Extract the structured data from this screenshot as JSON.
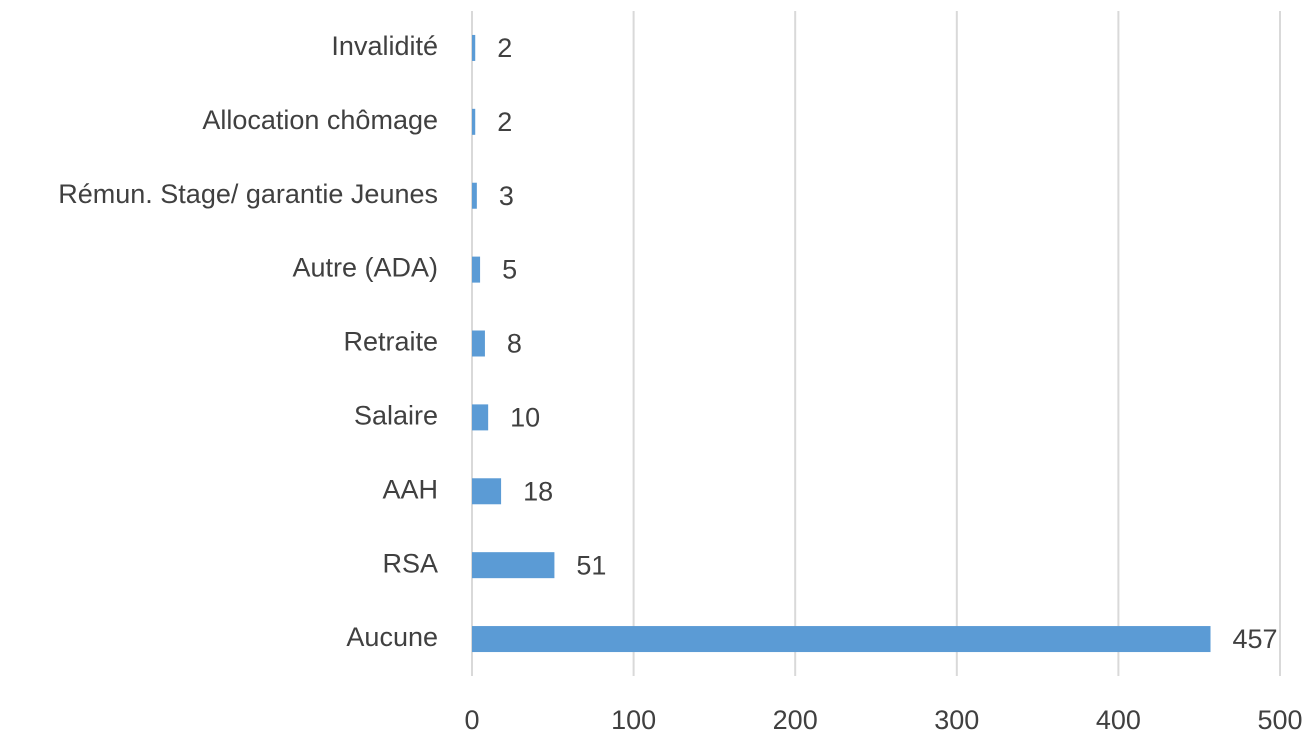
{
  "chart_data": {
    "type": "bar",
    "orientation": "horizontal",
    "categories": [
      "Invalidité",
      "Allocation chômage",
      "Rémun. Stage/ garantie Jeunes",
      "Autre (ADA)",
      "Retraite",
      "Salaire",
      "AAH",
      "RSA",
      "Aucune"
    ],
    "values": [
      2,
      2,
      3,
      5,
      8,
      10,
      18,
      51,
      457
    ],
    "color": "#5b9bd5",
    "xlim": [
      0,
      500
    ],
    "xticks": [
      0,
      100,
      200,
      300,
      400,
      500
    ],
    "grid": true
  }
}
